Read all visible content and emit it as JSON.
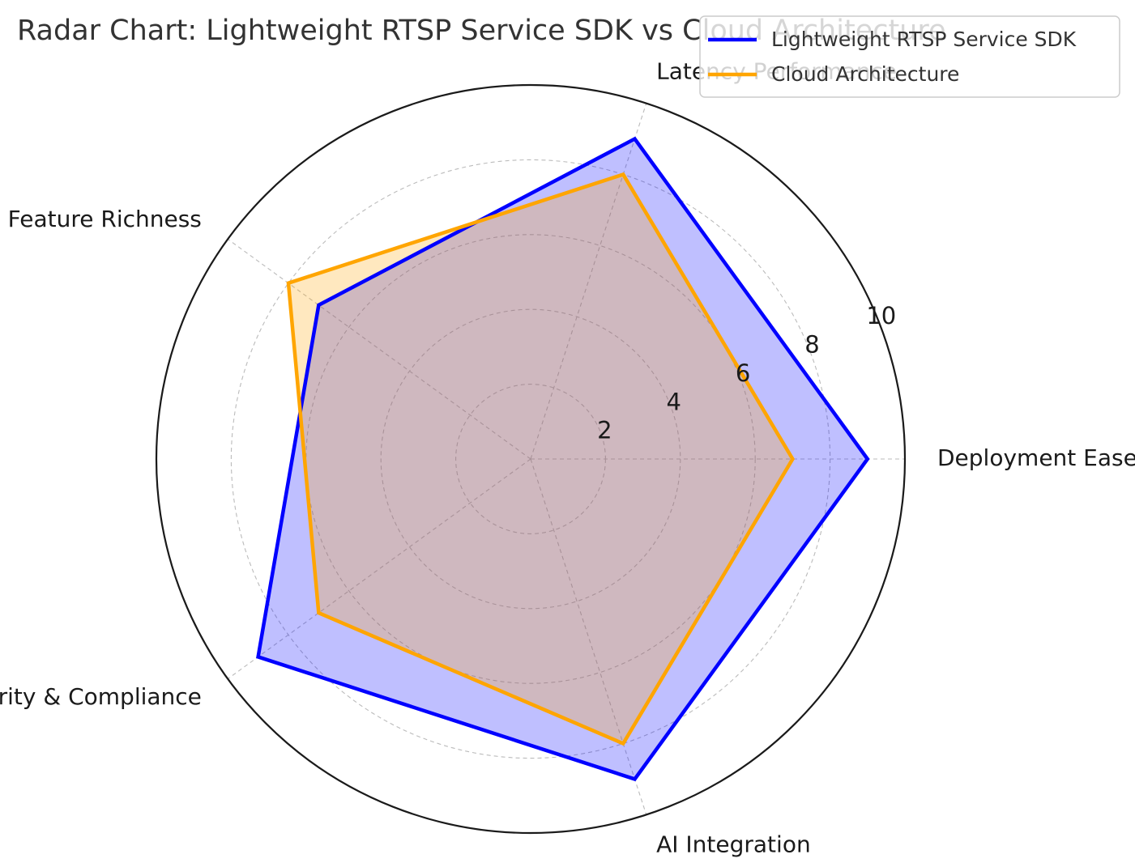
{
  "chart_data": {
    "type": "radar",
    "title": "Radar Chart: Lightweight RTSP Service SDK vs Cloud Architecture",
    "categories": [
      "Deployment Ease",
      "Latency Performance",
      "Feature Richness",
      "Security & Compliance",
      "AI Integration"
    ],
    "series": [
      {
        "name": "Lightweight RTSP Service SDK",
        "values": [
          9,
          9,
          7,
          9,
          9
        ],
        "color": "#0000ff",
        "fill": "#0000ff"
      },
      {
        "name": "Cloud Architecture",
        "values": [
          7,
          8,
          8,
          7,
          8
        ],
        "color": "#ffa500",
        "fill": "#ffa500"
      }
    ],
    "rlim": [
      0,
      10
    ],
    "rticks": [
      2,
      4,
      6,
      8,
      10
    ],
    "tick_labels": [
      "2",
      "4",
      "6",
      "8",
      "10"
    ],
    "grid": true,
    "legend_position": "top-right"
  }
}
